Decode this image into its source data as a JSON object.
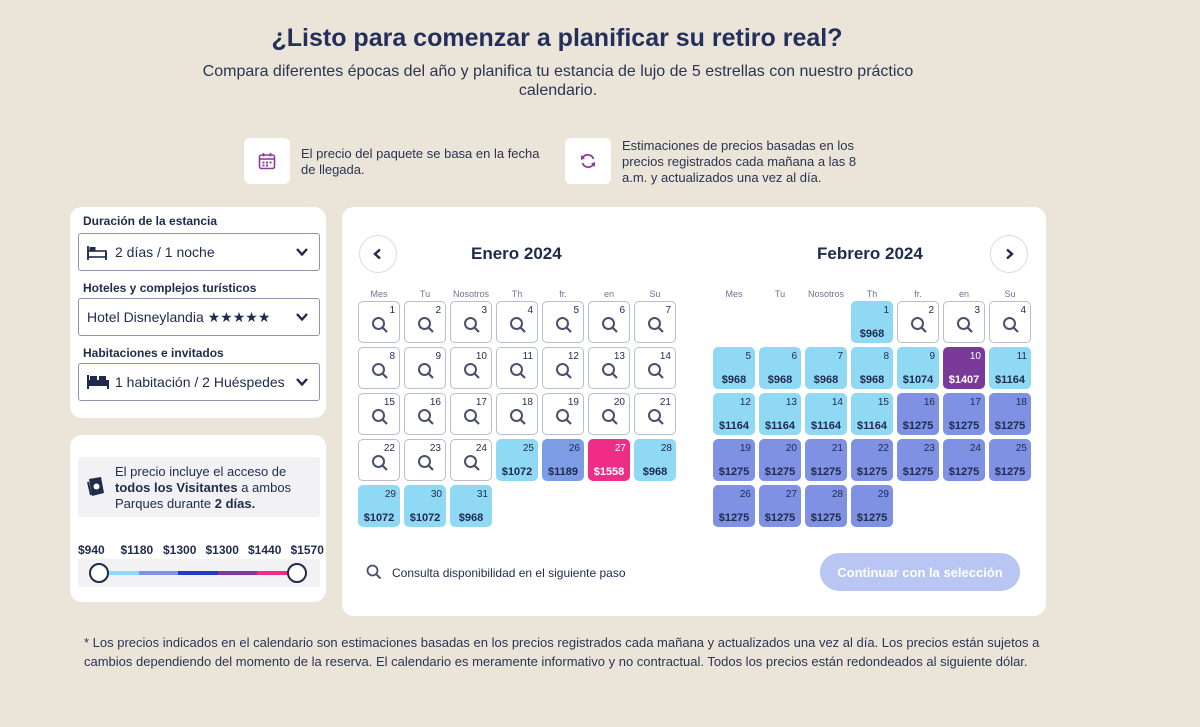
{
  "header": {
    "title": "¿Listo para comenzar a planificar su retiro real?",
    "subtitle": "Compara diferentes épocas del año y planifica tu estancia de lujo de 5 estrellas con nuestro práctico calendario."
  },
  "info": {
    "arrival_note": "El precio del paquete se basa en la fecha de llegada.",
    "estimate_note": "Estimaciones de precios basadas en los precios registrados cada mañana a las 8 a.m. y actualizados una vez al día."
  },
  "filters": {
    "duration_label": "Duración de la estancia",
    "duration_value": "2 días / 1 noche",
    "hotel_label": "Hoteles y complejos turísticos",
    "hotel_value": "Hotel Disneylandia ★★★★★",
    "rooms_label": "Habitaciones e invitados",
    "rooms_value": "1 habitación / 2 Huéspedes"
  },
  "park_info": {
    "line1": "El precio incluye el acceso de",
    "bold1": "todos los Visitantes",
    "line2": " a ambos",
    "line3": "Parques durante ",
    "bold2": "2 días."
  },
  "price_scale": [
    "$940",
    "$1180",
    "$1300",
    "$1300",
    "$1440",
    "$1570"
  ],
  "calendar": {
    "weekdays": [
      "Mes",
      "Tu",
      "Nosotros",
      "Th",
      "fr.",
      "en",
      "Su"
    ],
    "months": [
      {
        "name": "Enero 2024",
        "offset": 0,
        "days": [
          {
            "d": "1"
          },
          {
            "d": "2"
          },
          {
            "d": "3"
          },
          {
            "d": "4"
          },
          {
            "d": "5"
          },
          {
            "d": "6"
          },
          {
            "d": "7"
          },
          {
            "d": "8"
          },
          {
            "d": "9"
          },
          {
            "d": "10"
          },
          {
            "d": "11"
          },
          {
            "d": "12"
          },
          {
            "d": "13"
          },
          {
            "d": "14"
          },
          {
            "d": "15"
          },
          {
            "d": "16"
          },
          {
            "d": "17"
          },
          {
            "d": "18"
          },
          {
            "d": "19"
          },
          {
            "d": "20"
          },
          {
            "d": "21"
          },
          {
            "d": "22"
          },
          {
            "d": "23"
          },
          {
            "d": "24"
          },
          {
            "d": "25",
            "p": "$1072",
            "c": "c1"
          },
          {
            "d": "26",
            "p": "$1189",
            "c": "c2"
          },
          {
            "d": "27",
            "p": "$1558",
            "c": "pk"
          },
          {
            "d": "28",
            "p": "$968",
            "c": "c1"
          },
          {
            "d": "29",
            "p": "$1072",
            "c": "c1"
          },
          {
            "d": "30",
            "p": "$1072",
            "c": "c1"
          },
          {
            "d": "31",
            "p": "$968",
            "c": "c1"
          }
        ]
      },
      {
        "name": "Febrero 2024",
        "offset": 3,
        "days": [
          {
            "d": "1",
            "p": "$968",
            "c": "c1"
          },
          {
            "d": "2"
          },
          {
            "d": "3"
          },
          {
            "d": "4"
          },
          {
            "d": "5",
            "p": "$968",
            "c": "c1"
          },
          {
            "d": "6",
            "p": "$968",
            "c": "c1"
          },
          {
            "d": "7",
            "p": "$968",
            "c": "c1"
          },
          {
            "d": "8",
            "p": "$968",
            "c": "c1"
          },
          {
            "d": "9",
            "p": "$1074",
            "c": "c1"
          },
          {
            "d": "10",
            "p": "$1407",
            "c": "pu"
          },
          {
            "d": "11",
            "p": "$1164",
            "c": "c1"
          },
          {
            "d": "12",
            "p": "$1164",
            "c": "c1"
          },
          {
            "d": "13",
            "p": "$1164",
            "c": "c1"
          },
          {
            "d": "14",
            "p": "$1164",
            "c": "c1"
          },
          {
            "d": "15",
            "p": "$1164",
            "c": "c1"
          },
          {
            "d": "16",
            "p": "$1275",
            "c": "c4"
          },
          {
            "d": "17",
            "p": "$1275",
            "c": "c4"
          },
          {
            "d": "18",
            "p": "$1275",
            "c": "c4"
          },
          {
            "d": "19",
            "p": "$1275",
            "c": "c4"
          },
          {
            "d": "20",
            "p": "$1275",
            "c": "c4"
          },
          {
            "d": "21",
            "p": "$1275",
            "c": "c4"
          },
          {
            "d": "22",
            "p": "$1275",
            "c": "c4"
          },
          {
            "d": "23",
            "p": "$1275",
            "c": "c4"
          },
          {
            "d": "24",
            "p": "$1275",
            "c": "c4"
          },
          {
            "d": "25",
            "p": "$1275",
            "c": "c4"
          },
          {
            "d": "26",
            "p": "$1275",
            "c": "c4"
          },
          {
            "d": "27",
            "p": "$1275",
            "c": "c4"
          },
          {
            "d": "28",
            "p": "$1275",
            "c": "c4"
          },
          {
            "d": "29",
            "p": "$1275",
            "c": "c4"
          }
        ]
      }
    ],
    "availability_note": "Consulta disponibilidad en el siguiente paso",
    "continue_label": "Continuar con la selección"
  },
  "footnote": "* Los precios indicados en el calendario son estimaciones basadas en los precios registrados cada mañana y actualizados una vez al día. Los precios están sujetos a cambios dependiendo del momento de la reserva. El calendario es meramente informativo y no contractual. Todos los precios están redondeados al siguiente dólar.",
  "colors": {
    "background": "#ebe4d8",
    "light_blue": "#8fd9f4",
    "mid_blue": "#7f91e3",
    "pink": "#ef2d86",
    "purple": "#7a3a9a",
    "button_disabled": "#b9c5f2"
  }
}
